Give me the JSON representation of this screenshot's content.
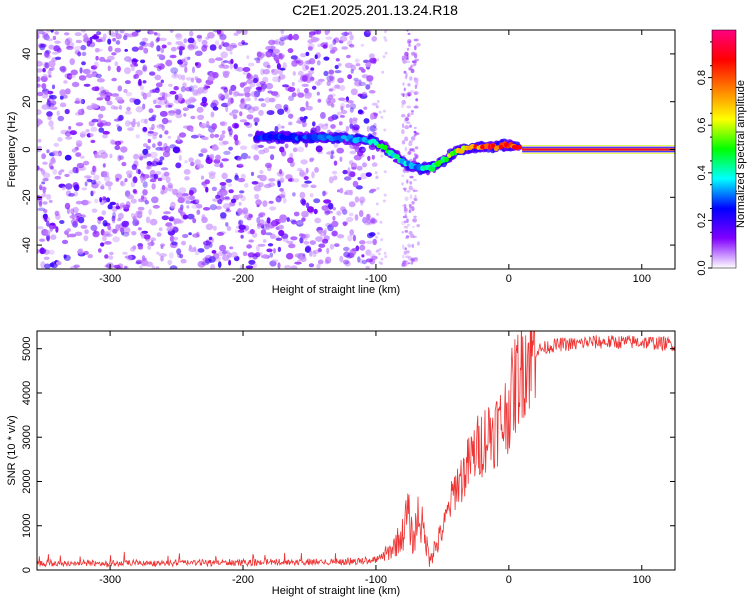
{
  "title": "C2E1.2025.201.13.24.R18",
  "chart_data": [
    {
      "type": "heatmap",
      "title": "C2E1.2025.201.13.24.R18",
      "xlabel": "Height of straight line (km)",
      "ylabel": "Frequency (Hz)",
      "xlim": [
        -355,
        125
      ],
      "ylim": [
        -50,
        50
      ],
      "xticks": [
        -300,
        -200,
        -100,
        0,
        100
      ],
      "yticks": [
        -40,
        -20,
        0,
        20,
        40
      ],
      "colorbar": {
        "label": "Normalized spectral amplitude",
        "range": [
          0,
          1
        ],
        "ticks": [
          "0.0",
          "0.2",
          "0.4",
          "0.6",
          "0.8"
        ],
        "colormap": [
          "#ffffff",
          "#8000ff",
          "#0000ff",
          "#00ffff",
          "#00ff00",
          "#ffff00",
          "#ff8000",
          "#ff0000",
          "#ff0080"
        ]
      },
      "ridge": {
        "x": [
          -190,
          -160,
          -130,
          -110,
          -100,
          -90,
          -80,
          -70,
          -60,
          -50,
          -40,
          -30,
          -20,
          -10,
          0,
          10,
          120
        ],
        "y": [
          5,
          5,
          5,
          4,
          3,
          -1,
          -5,
          -8,
          -8,
          -5,
          -1,
          1,
          1,
          1,
          2,
          0,
          0
        ],
        "amplitude": [
          0.25,
          0.3,
          0.3,
          0.35,
          0.5,
          0.45,
          0.4,
          0.3,
          0.45,
          0.5,
          0.6,
          0.75,
          0.85,
          0.85,
          0.8,
          1.0,
          1.0
        ]
      },
      "noise_extent": {
        "x": [
          -355,
          -100
        ],
        "gap_x": [
          -80,
          -68
        ]
      }
    },
    {
      "type": "line",
      "xlabel": "Height of straight line (km)",
      "ylabel": "SNR (10 * v/v)",
      "xlim": [
        -355,
        125
      ],
      "ylim": [
        0,
        5400
      ],
      "xticks": [
        -300,
        -200,
        -100,
        0,
        100
      ],
      "yticks": [
        0,
        1000,
        2000,
        3000,
        4000,
        5000
      ],
      "color": "#ee3333",
      "series": [
        {
          "x": [
            -355,
            -300,
            -250,
            -200,
            -150,
            -110,
            -100,
            -90,
            -80,
            -76,
            -72,
            -68,
            -60,
            -55,
            -50,
            -45,
            -40,
            -35,
            -30,
            -25,
            -20,
            -15,
            -10,
            -5,
            0,
            5,
            10,
            15,
            20,
            30,
            40,
            50,
            60,
            80,
            100,
            125
          ],
          "y": [
            150,
            150,
            160,
            170,
            180,
            200,
            250,
            400,
            800,
            1300,
            600,
            1300,
            350,
            500,
            900,
            1400,
            1900,
            2100,
            2400,
            2700,
            2900,
            3100,
            3200,
            3300,
            3700,
            4200,
            4700,
            4850,
            4950,
            5050,
            5100,
            5100,
            5150,
            5150,
            5150,
            5100
          ]
        }
      ]
    }
  ]
}
